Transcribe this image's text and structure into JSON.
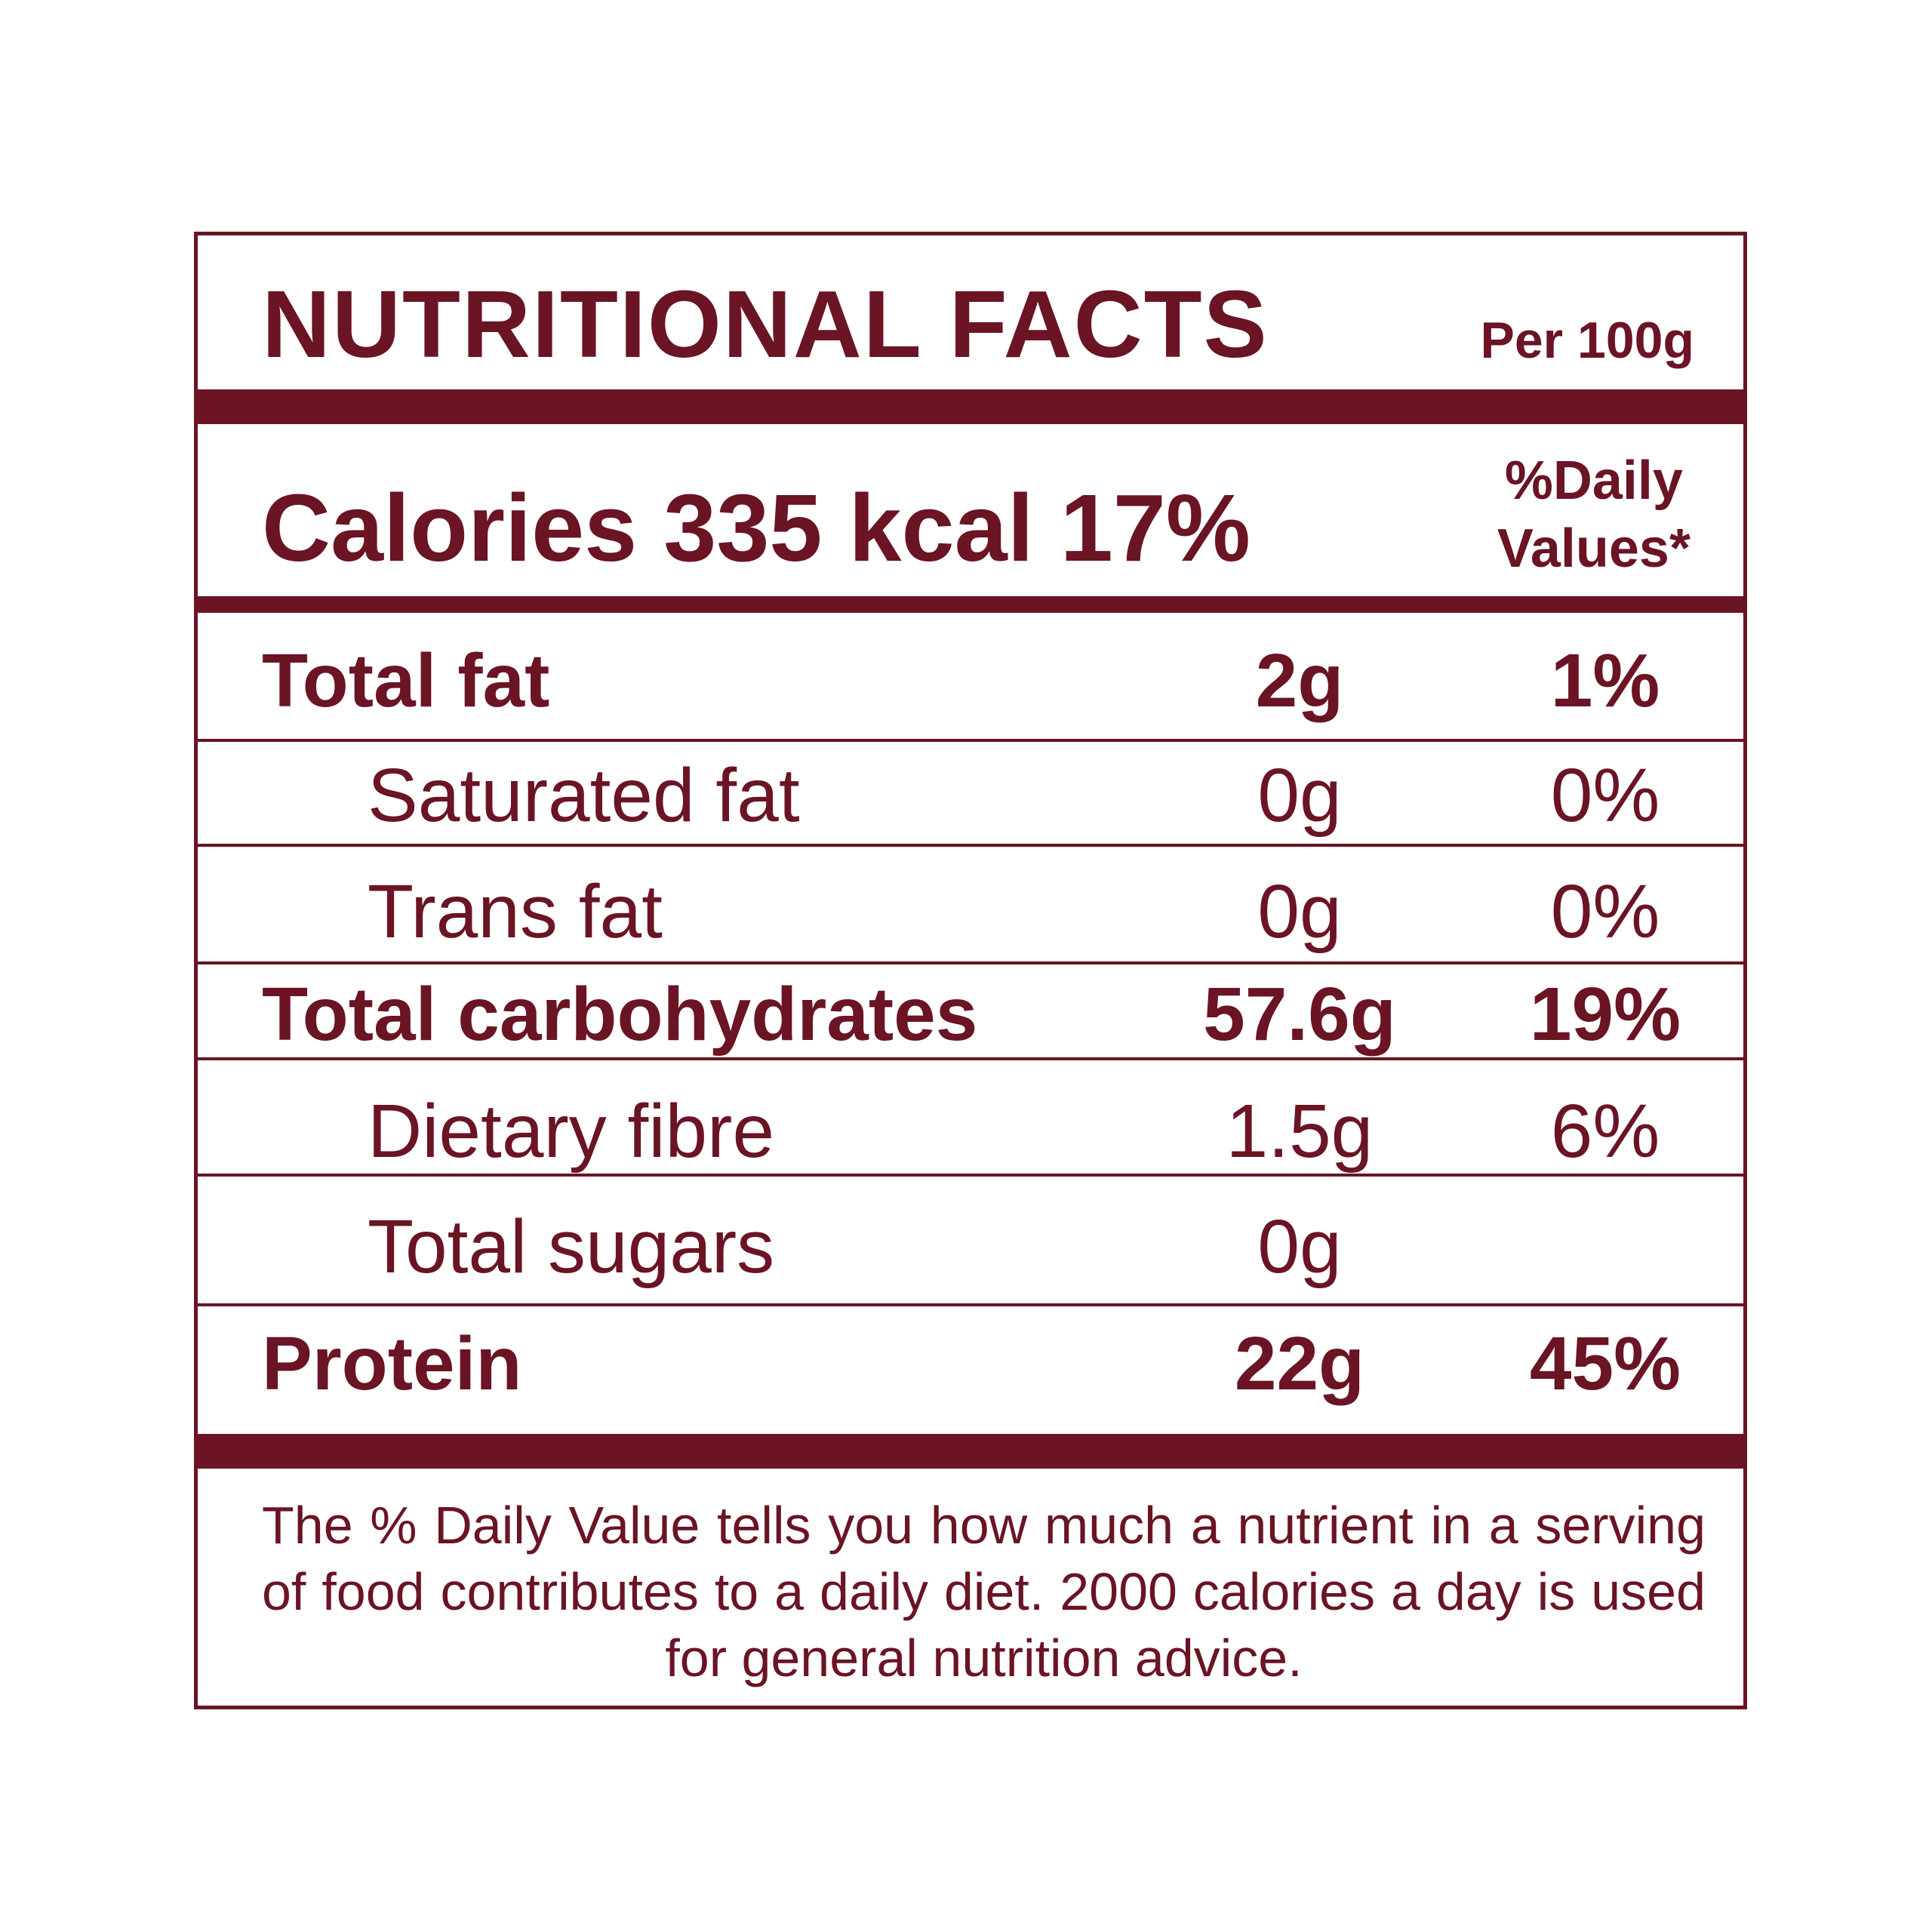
{
  "label": {
    "title": "NUTRITIONAL FACTS",
    "serving": "Per 100g",
    "calories": "Calories 335 kcal 17%",
    "dv_header_line1": "%Daily",
    "dv_header_line2": "Values*",
    "rows": [
      {
        "name": "Total fat",
        "amount": "2g",
        "dv": "1%",
        "bold": true
      },
      {
        "name": "Saturated fat",
        "amount": "0g",
        "dv": "0%",
        "bold": false
      },
      {
        "name": "Trans fat",
        "amount": "0g",
        "dv": "0%",
        "bold": false
      },
      {
        "name": "Total carbohydrates",
        "amount": "57.6g",
        "dv": "19%",
        "bold": true
      },
      {
        "name": "Dietary fibre",
        "amount": "1.5g",
        "dv": "6%",
        "bold": false
      },
      {
        "name": "Total sugars",
        "amount": "0g",
        "dv": "",
        "bold": false
      },
      {
        "name": "Protein",
        "amount": "22g",
        "dv": "45%",
        "bold": true
      }
    ],
    "footnote": "The % Daily Value tells you how much a nutrient in a serving of food contributes to a daily diet. 2000 calories a day is used for general nutrition advice."
  },
  "colors": {
    "primary": "#6a1424",
    "background": "#ffffff"
  }
}
